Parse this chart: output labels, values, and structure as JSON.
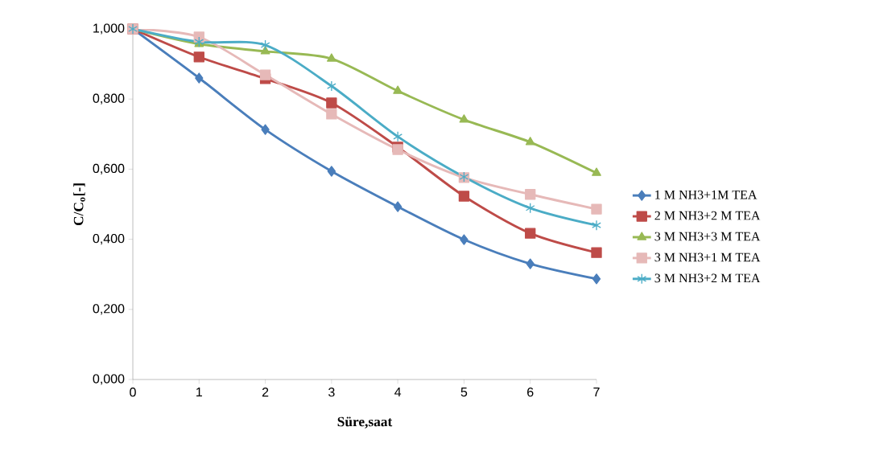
{
  "chart_data": {
    "type": "line",
    "xlabel": "Süre,saat",
    "ylabel": "C/C$_{o}$[-]",
    "x": [
      0,
      1,
      2,
      3,
      4,
      5,
      6,
      7
    ],
    "series": [
      {
        "name": "1 M NH3+1M TEA",
        "color": "#4a7ebb",
        "marker": "diamond",
        "values": [
          1.0,
          0.86,
          0.713,
          0.594,
          0.493,
          0.399,
          0.33,
          0.287
        ]
      },
      {
        "name": "2 M NH3+2 M TEA",
        "color": "#be4b48",
        "marker": "square",
        "values": [
          1.0,
          0.92,
          0.858,
          0.789,
          0.663,
          0.523,
          0.417,
          0.362
        ]
      },
      {
        "name": "3 M NH3+3 M TEA",
        "color": "#98b954",
        "marker": "triangle",
        "values": [
          1.0,
          0.957,
          0.936,
          0.915,
          0.823,
          0.741,
          0.677,
          0.589
        ]
      },
      {
        "name": "3 M NH3+1 M TEA",
        "color": "#e6b9b8",
        "marker": "square",
        "values": [
          1.0,
          0.977,
          0.869,
          0.757,
          0.656,
          0.576,
          0.528,
          0.486
        ]
      },
      {
        "name": "3 M NH3+2 M TEA",
        "color": "#4bacc6",
        "marker": "cross",
        "values": [
          1.0,
          0.963,
          0.954,
          0.837,
          0.693,
          0.578,
          0.489,
          0.44
        ]
      }
    ],
    "xlim": [
      0,
      7
    ],
    "xticks": [
      0,
      1,
      2,
      3,
      4,
      5,
      6,
      7
    ],
    "ylim": [
      0,
      1
    ],
    "yticks": [
      {
        "value": 0,
        "label": "0,000"
      },
      {
        "value": 0.2,
        "label": "0,200"
      },
      {
        "value": 0.4,
        "label": "0,400"
      },
      {
        "value": 0.6,
        "label": "0,600"
      },
      {
        "value": 0.8,
        "label": "0,800"
      },
      {
        "value": 1,
        "label": "1,000"
      }
    ],
    "grid": false,
    "legend": "right",
    "line_style": "solid"
  }
}
